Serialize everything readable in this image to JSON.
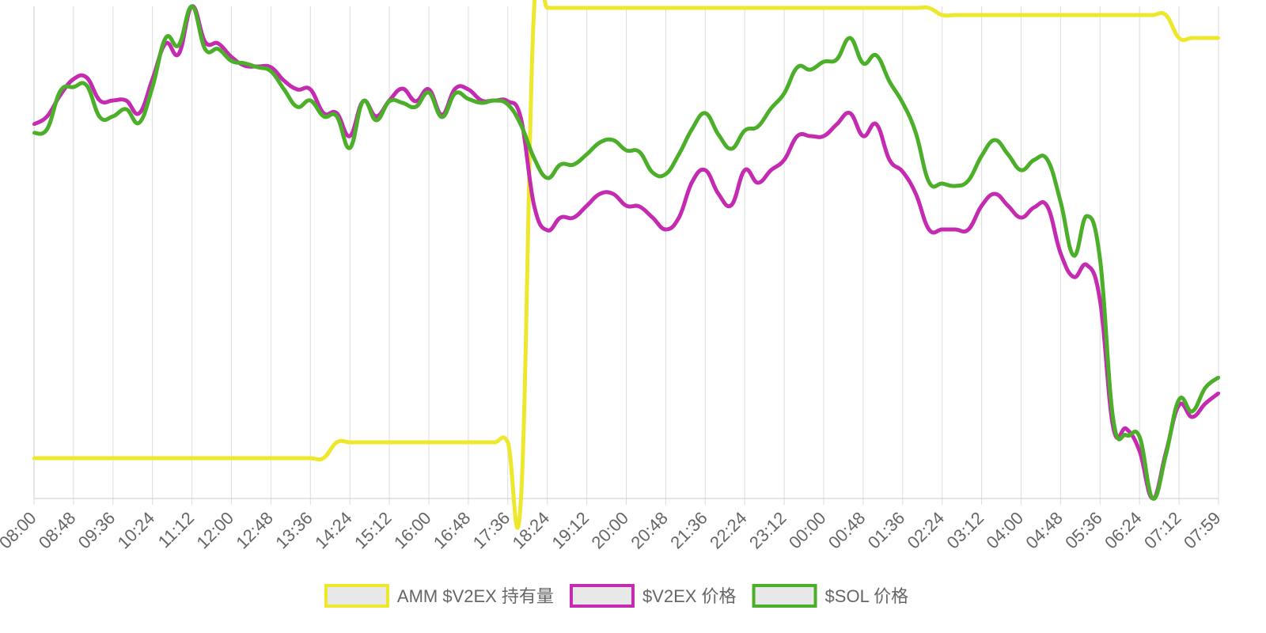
{
  "chart_data": {
    "type": "line",
    "categories": [
      "08:00",
      null,
      null,
      "08:48",
      null,
      null,
      "09:36",
      null,
      null,
      "10:24",
      null,
      null,
      "11:12",
      null,
      null,
      "12:00",
      null,
      null,
      "12:48",
      null,
      null,
      "13:36",
      null,
      null,
      "14:24",
      null,
      null,
      "15:12",
      null,
      null,
      "16:00",
      null,
      null,
      "16:48",
      null,
      null,
      "17:36",
      null,
      null,
      "18:24",
      null,
      null,
      "19:12",
      null,
      null,
      "20:00",
      null,
      null,
      "20:48",
      null,
      null,
      "21:36",
      null,
      null,
      "22:24",
      null,
      null,
      "23:12",
      null,
      null,
      "00:00",
      null,
      null,
      "00:48",
      null,
      null,
      "01:36",
      null,
      null,
      "02:24",
      null,
      null,
      "03:12",
      null,
      null,
      "04:00",
      null,
      null,
      "04:48",
      null,
      null,
      "05:36",
      null,
      null,
      "06:24",
      null,
      null,
      "07:12",
      null,
      null,
      "07:59"
    ],
    "series": [
      {
        "name": "AMM $V2EX 持有量",
        "color": "#eee82c",
        "values": [
          51,
          51,
          51,
          51,
          51,
          51,
          51,
          51,
          51,
          51,
          51,
          51,
          51,
          51,
          51,
          51,
          51,
          51,
          51,
          51,
          51,
          51,
          51,
          71,
          71,
          71,
          71,
          71,
          71,
          71,
          71,
          71,
          71,
          71,
          71,
          71,
          71,
          0,
          620,
          620,
          620,
          620,
          620,
          620,
          620,
          620,
          620,
          620,
          620,
          620,
          620,
          620,
          620,
          620,
          620,
          620,
          620,
          620,
          620,
          620,
          620,
          620,
          620,
          620,
          620,
          620,
          620,
          620,
          620,
          611,
          611,
          611,
          611,
          611,
          611,
          611,
          611,
          611,
          611,
          611,
          611,
          611,
          611,
          611,
          611,
          611,
          611,
          582,
          582,
          582,
          582
        ]
      },
      {
        "name": "$V2EX 价格",
        "color": "#c42bb0",
        "values": [
          473,
          483,
          510,
          530,
          532,
          503,
          503,
          503,
          487,
          530,
          575,
          562,
          622,
          577,
          575,
          558,
          547,
          546,
          545,
          528,
          517,
          517,
          487,
          487,
          458,
          502,
          483,
          503,
          518,
          502,
          517,
          485,
          518,
          517,
          503,
          503,
          502,
          480,
          370,
          339,
          355,
          355,
          370,
          385,
          385,
          370,
          369,
          355,
          340,
          355,
          400,
          415,
          385,
          371,
          415,
          399,
          415,
          428,
          458,
          458,
          458,
          473,
          487,
          458,
          473,
          428,
          413,
          385,
          340,
          340,
          340,
          340,
          370,
          385,
          370,
          355,
          368,
          369,
          310,
          280,
          295,
          250,
          90,
          88,
          60,
          0,
          58,
          118,
          103,
          120,
          133
        ]
      },
      {
        "name": "$SOL 价格",
        "color": "#4caf2a",
        "values": [
          462,
          467,
          515,
          520,
          522,
          482,
          483,
          492,
          475,
          520,
          582,
          573,
          622,
          568,
          568,
          553,
          550,
          545,
          540,
          517,
          495,
          503,
          483,
          483,
          443,
          502,
          478,
          502,
          500,
          495,
          513,
          482,
          512,
          505,
          500,
          503,
          498,
          472,
          430,
          405,
          422,
          422,
          435,
          450,
          453,
          440,
          438,
          412,
          410,
          435,
          467,
          487,
          460,
          442,
          465,
          470,
          493,
          512,
          545,
          542,
          552,
          555,
          582,
          550,
          560,
          527,
          500,
          462,
          400,
          398,
          395,
          402,
          433,
          453,
          435,
          415,
          428,
          428,
          375,
          307,
          357,
          302,
          100,
          80,
          78,
          0,
          55,
          125,
          110,
          140,
          153
        ]
      }
    ],
    "ylim": [
      0,
      622
    ],
    "grid": true,
    "legend": "bottom"
  }
}
